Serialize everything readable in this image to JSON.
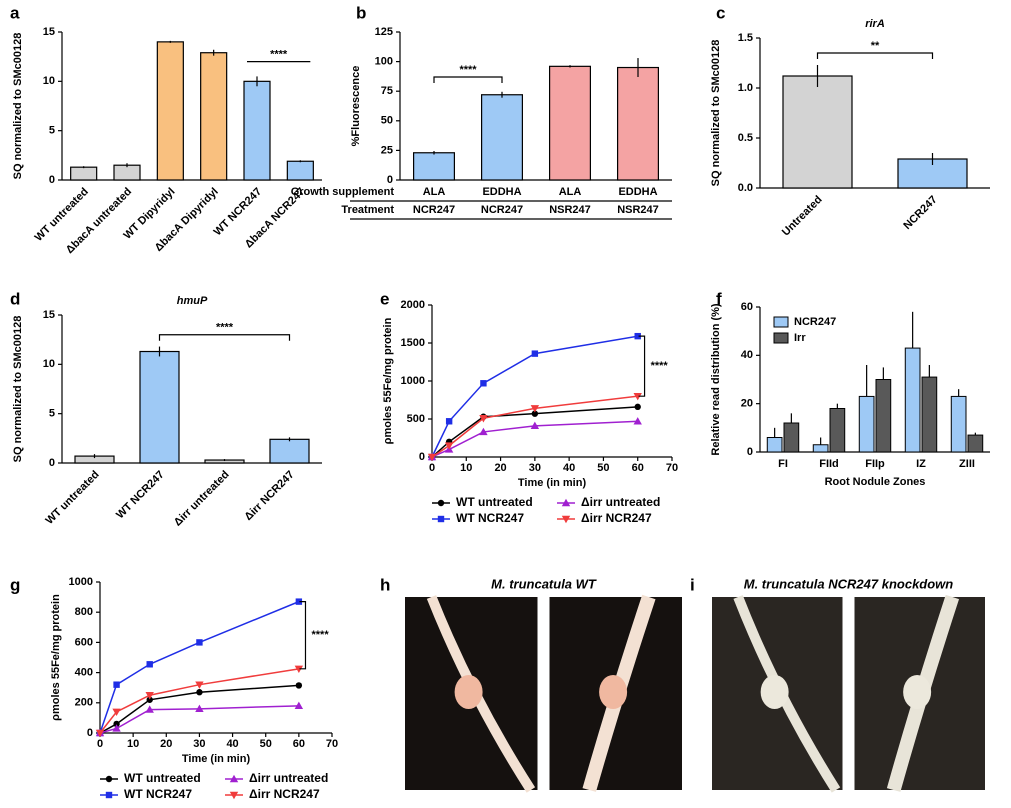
{
  "chart_data": [
    {
      "type": "bar",
      "label": "a",
      "ylabel": "SQ normalized to  SMc00128",
      "categories": [
        "WT untreated",
        "ΔbacA untreated",
        "WT Dipyridyl",
        "ΔbacA Dipyridyl",
        "WT NCR247",
        "ΔbacA NCR247"
      ],
      "values": [
        1.3,
        1.5,
        14.0,
        12.9,
        10.0,
        1.9
      ],
      "errors": [
        0.1,
        0.2,
        0.1,
        0.3,
        0.5,
        0.1
      ],
      "colors": [
        "#d3d3d3",
        "#d3d3d3",
        "#f9c07f",
        "#f9c07f",
        "#9ec9f5",
        "#9ec9f5"
      ],
      "ylim": [
        0,
        15
      ],
      "yticks": [
        0,
        5,
        10,
        15
      ],
      "annotation": "****"
    },
    {
      "type": "bar",
      "label": "b",
      "ylabel": "%Fluorescence",
      "row_labels": [
        "Growth supplement",
        "Treatment"
      ],
      "categories": [
        "ALA",
        "EDDHA",
        "ALA",
        "EDDHA"
      ],
      "treatments": [
        "NCR247",
        "NCR247",
        "NSR247",
        "NSR247"
      ],
      "values": [
        23,
        72,
        96,
        95
      ],
      "errors": [
        1.5,
        2.5,
        1,
        8
      ],
      "colors": [
        "#9ec9f5",
        "#9ec9f5",
        "#f4a3a3",
        "#f4a3a3"
      ],
      "ylim": [
        0,
        125
      ],
      "yticks": [
        0,
        25,
        50,
        75,
        100,
        125
      ],
      "annotation": "****"
    },
    {
      "type": "bar",
      "label": "c",
      "title": "rirA",
      "ylabel": "SQ normalized to  SMc00128",
      "categories": [
        "Untreated",
        "NCR247"
      ],
      "values": [
        1.12,
        0.29
      ],
      "errors": [
        0.11,
        0.06
      ],
      "colors": [
        "#d3d3d3",
        "#9ec9f5"
      ],
      "ylim": [
        0,
        1.5
      ],
      "yticks": [
        {
          "value": 0,
          "label": "0.0"
        },
        0.5,
        {
          "value": 1,
          "label": "1.0"
        },
        1.5
      ],
      "annotation": "**"
    },
    {
      "type": "bar",
      "label": "d",
      "title": "hmuP",
      "ylabel": "SQ normalized to  SMc00128",
      "categories": [
        "WT untreated",
        "WT NCR247",
        "Δirr untreated",
        "Δirr NCR247"
      ],
      "values": [
        0.7,
        11.3,
        0.3,
        2.4
      ],
      "errors": [
        0.2,
        0.5,
        0.1,
        0.2
      ],
      "colors": [
        "#d3d3d3",
        "#9ec9f5",
        "#d3d3d3",
        "#9ec9f5"
      ],
      "ylim": [
        0,
        15
      ],
      "yticks": [
        0,
        5,
        10,
        15
      ],
      "annotation": "****"
    },
    {
      "type": "line",
      "label": "e",
      "ylabel": "ρmoles 55Fe/mg protein",
      "xlabel": "Time (in min)",
      "x": [
        0,
        5,
        15,
        30,
        60
      ],
      "series": [
        {
          "name": "WT untreated",
          "color": "#000000",
          "marker": "circle",
          "values": [
            0,
            200,
            530,
            570,
            660
          ]
        },
        {
          "name": "WT NCR247",
          "color": "#1f2ee6",
          "marker": "square",
          "values": [
            0,
            470,
            970,
            1360,
            1590
          ]
        },
        {
          "name": "Δirr untreated",
          "color": "#a020d0",
          "marker": "triangle-up",
          "values": [
            0,
            100,
            330,
            410,
            470
          ]
        },
        {
          "name": "Δirr NCR247",
          "color": "#f03c3c",
          "marker": "triangle-down",
          "values": [
            0,
            150,
            510,
            640,
            800
          ]
        }
      ],
      "xlim": [
        0,
        70
      ],
      "xticks": [
        0,
        10,
        20,
        30,
        40,
        50,
        60,
        70
      ],
      "ylim": [
        0,
        2000
      ],
      "yticks": [
        0,
        500,
        1000,
        1500,
        2000
      ],
      "annotation": "****"
    },
    {
      "type": "grouped_bar",
      "label": "f",
      "ylabel": "Relative read distribution (%)",
      "xlabel": "Root Nodule Zones",
      "categories": [
        "FI",
        "FIId",
        "FIIp",
        "IZ",
        "ZIII"
      ],
      "series": [
        {
          "name": "NCR247",
          "color": "#9ec9f5",
          "values": [
            6,
            3,
            23,
            43,
            23
          ],
          "errors": [
            4,
            3,
            13,
            15,
            3
          ]
        },
        {
          "name": "Irr",
          "color": "#595959",
          "values": [
            12,
            18,
            30,
            31,
            7
          ],
          "errors": [
            4,
            2,
            5,
            5,
            1
          ]
        }
      ],
      "ylim": [
        0,
        60
      ],
      "yticks": [
        0,
        20,
        40,
        60
      ],
      "legend": "upper left"
    },
    {
      "type": "line",
      "label": "g",
      "ylabel": "ρmoles 55Fe/mg protein",
      "xlabel": "Time (in min)",
      "x": [
        0,
        5,
        15,
        30,
        60
      ],
      "series": [
        {
          "name": "WT untreated",
          "color": "#000000",
          "marker": "circle",
          "values": [
            0,
            60,
            220,
            270,
            315
          ]
        },
        {
          "name": "WT NCR247",
          "color": "#1f2ee6",
          "marker": "square",
          "values": [
            0,
            320,
            455,
            600,
            870
          ]
        },
        {
          "name": "Δirr untreated",
          "color": "#a020d0",
          "marker": "triangle-up",
          "values": [
            0,
            30,
            155,
            160,
            180
          ]
        },
        {
          "name": "Δirr NCR247",
          "color": "#f03c3c",
          "marker": "triangle-down",
          "values": [
            0,
            140,
            250,
            320,
            425
          ]
        }
      ],
      "xlim": [
        0,
        70
      ],
      "xticks": [
        0,
        10,
        20,
        30,
        40,
        50,
        60,
        70
      ],
      "ylim": [
        0,
        1000
      ],
      "yticks": [
        0,
        200,
        400,
        600,
        800,
        1000
      ],
      "annotation": "****"
    },
    {
      "type": "image",
      "label": "h",
      "title": "M. truncatula WT"
    },
    {
      "type": "image",
      "label": "i",
      "title": "M. truncatula NCR247 knockdown"
    }
  ]
}
